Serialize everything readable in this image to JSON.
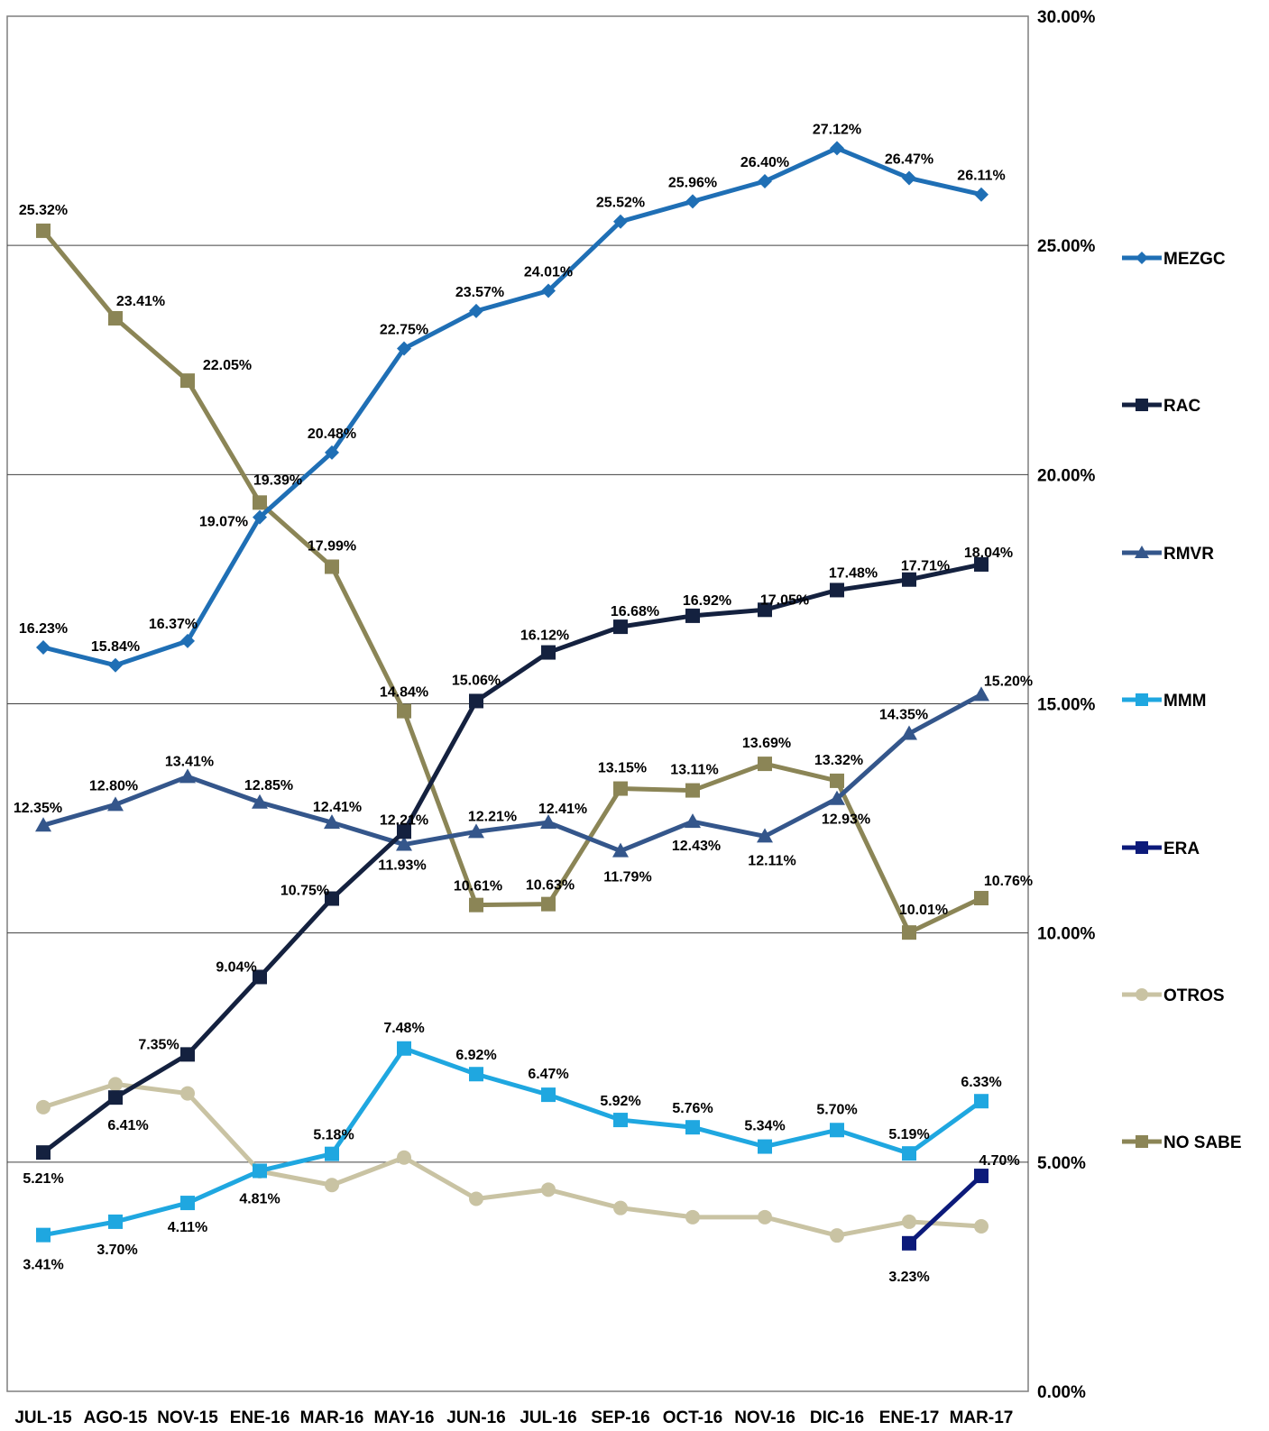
{
  "chart_data": {
    "type": "line",
    "title": "",
    "xlabel": "",
    "ylabel": "",
    "categories": [
      "JUL-15",
      "AGO-15",
      "NOV-15",
      "ENE-16",
      "MAR-16",
      "MAY-16",
      "JUN-16",
      "JUL-16",
      "SEP-16",
      "OCT-16",
      "NOV-16",
      "DIC-16",
      "ENE-17",
      "MAR-17"
    ],
    "y_axis": {
      "min": 0,
      "max": 30,
      "ticks": [
        "0.00%",
        "5.00%",
        "10.00%",
        "15.00%",
        "20.00%",
        "25.00%",
        "30.00%"
      ],
      "position": "right"
    },
    "grid": true,
    "legend_position": "right",
    "series": [
      {
        "name": "MEZGC",
        "color": "#1f6fb5",
        "marker": "diamond",
        "values": [
          16.23,
          15.84,
          16.37,
          19.07,
          20.48,
          22.75,
          23.57,
          24.01,
          25.52,
          25.96,
          26.4,
          27.12,
          26.47,
          26.11
        ],
        "labels": [
          "16.23%",
          "15.84%",
          "16.37%",
          "19.07%",
          "20.48%",
          "22.75%",
          "23.57%",
          "24.01%",
          "25.52%",
          "25.96%",
          "26.40%",
          "27.12%",
          "26.47%",
          "26.11%"
        ]
      },
      {
        "name": "RAC",
        "color": "#14213f",
        "marker": "square",
        "values": [
          5.21,
          6.41,
          7.35,
          9.04,
          10.75,
          12.21,
          15.06,
          16.12,
          16.68,
          16.92,
          17.05,
          17.48,
          17.71,
          18.04
        ],
        "labels": [
          "5.21%",
          "6.41%",
          "7.35%",
          "9.04%",
          "10.75%",
          "12.21%",
          "15.06%",
          "16.12%",
          "16.68%",
          "16.92%",
          "17.05%",
          "17.48%",
          "17.71%",
          "18.04%"
        ]
      },
      {
        "name": "RMVR",
        "color": "#34568b",
        "marker": "triangle",
        "values": [
          12.35,
          12.8,
          13.41,
          12.85,
          12.41,
          11.93,
          12.21,
          12.41,
          11.79,
          12.43,
          12.11,
          12.93,
          14.35,
          15.2
        ],
        "labels": [
          "12.35%",
          "12.80%",
          "13.41%",
          "12.85%",
          "12.41%",
          "11.93%",
          "12.21%",
          "12.41%",
          "11.79%",
          "12.43%",
          "12.11%",
          "12.93%",
          "14.35%",
          "15.20%"
        ]
      },
      {
        "name": "MMM",
        "color": "#1fa7e0",
        "marker": "square",
        "values": [
          3.41,
          3.7,
          4.11,
          4.81,
          5.18,
          7.48,
          6.92,
          6.47,
          5.92,
          5.76,
          5.34,
          5.7,
          5.19,
          6.33
        ],
        "labels": [
          "3.41%",
          "3.70%",
          "4.11%",
          "4.81%",
          "5.18%",
          "7.48%",
          "6.92%",
          "6.47%",
          "5.92%",
          "5.76%",
          "5.34%",
          "5.70%",
          "5.19%",
          "6.33%"
        ]
      },
      {
        "name": "ERA",
        "color": "#0c1a7a",
        "marker": "square",
        "values": [
          null,
          null,
          null,
          null,
          null,
          null,
          null,
          null,
          null,
          null,
          null,
          null,
          3.23,
          4.7
        ],
        "labels": [
          "",
          "",
          "",
          "",
          "",
          "",
          "",
          "",
          "",
          "",
          "",
          "",
          "3.23%",
          "4.70%"
        ]
      },
      {
        "name": "OTROS",
        "color": "#c9c3a3",
        "marker": "circle",
        "values": [
          6.2,
          6.7,
          6.5,
          4.8,
          4.5,
          5.1,
          4.2,
          4.4,
          4.0,
          3.8,
          3.8,
          3.4,
          3.7,
          3.6
        ],
        "labels": [
          "",
          "",
          "",
          "",
          "",
          "",
          "",
          "",
          "",
          "",
          "",
          "",
          "",
          ""
        ]
      },
      {
        "name": "NO SABE",
        "color": "#8b8556",
        "marker": "square",
        "values": [
          25.32,
          23.41,
          22.05,
          19.39,
          17.99,
          14.84,
          10.61,
          10.63,
          13.15,
          13.11,
          13.69,
          13.32,
          10.01,
          10.76
        ],
        "labels": [
          "25.32%",
          "23.41%",
          "22.05%",
          "19.39%",
          "17.99%",
          "14.84%",
          "10.61%",
          "10.63%",
          "13.15%",
          "13.11%",
          "13.69%",
          "13.32%",
          "10.01%",
          "10.76%"
        ]
      }
    ]
  }
}
